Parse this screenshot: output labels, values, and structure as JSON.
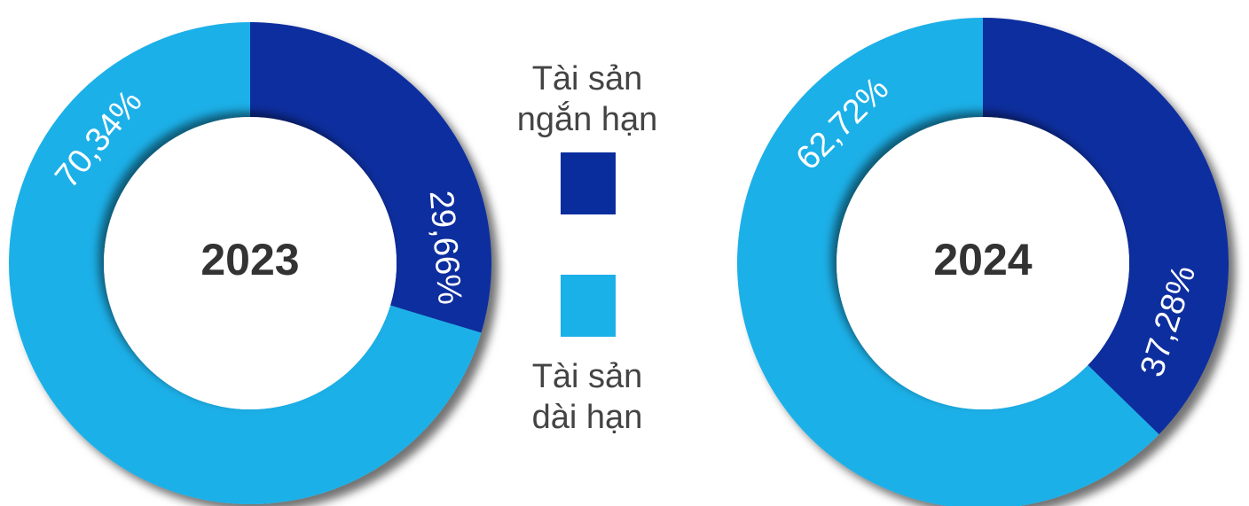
{
  "chart_data": [
    {
      "type": "pie",
      "title": "2023",
      "values": [
        29.66,
        70.34
      ],
      "value_labels": [
        "29,66%",
        "70,34%"
      ],
      "colors": [
        "#0a2d9e",
        "#1ab0e8"
      ]
    },
    {
      "type": "pie",
      "title": "2024",
      "values": [
        37.28,
        62.72
      ],
      "value_labels": [
        "37,28%",
        "62,72%"
      ],
      "colors": [
        "#0a2d9e",
        "#1ab0e8"
      ]
    }
  ],
  "legend": [
    {
      "name": "Tài sản\nngắn hạn",
      "color": "#0a2d9e"
    },
    {
      "name": "Tài sản\ndài hạn",
      "color": "#1ab0e8"
    }
  ]
}
